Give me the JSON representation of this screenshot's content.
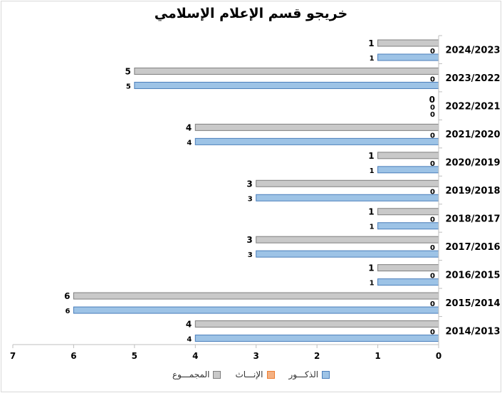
{
  "chart_data": {
    "type": "bar",
    "orientation": "horizontal",
    "title": "خريجو قسم الإعلام الإسلامي",
    "categories": [
      "2014/2013",
      "2015/2014",
      "2016/2015",
      "2017/2016",
      "2018/2017",
      "2019/2018",
      "2020/2019",
      "2021/2020",
      "2022/2021",
      "2023/2022",
      "2024/2023"
    ],
    "series": [
      {
        "name": "الذكـــور",
        "color": "#9dc3e6",
        "stroke": "#4a7ebb",
        "values": [
          4,
          6,
          1,
          3,
          1,
          3,
          1,
          4,
          0,
          5,
          1
        ]
      },
      {
        "name": "الإنـــاث",
        "color": "#f4b183",
        "stroke": "#ed7d31",
        "values": [
          0,
          0,
          0,
          0,
          0,
          0,
          0,
          0,
          0,
          0,
          0
        ]
      },
      {
        "name": "المجمـــوع",
        "color": "#c9c9c9",
        "stroke": "#7f7f7f",
        "values": [
          4,
          6,
          1,
          3,
          1,
          3,
          1,
          4,
          0,
          5,
          1
        ]
      }
    ],
    "xlim": [
      0,
      7
    ],
    "xticks": [
      0,
      1,
      2,
      3,
      4,
      5,
      6,
      7
    ],
    "x_reversed": true,
    "grid": false,
    "legend_position": "bottom"
  }
}
